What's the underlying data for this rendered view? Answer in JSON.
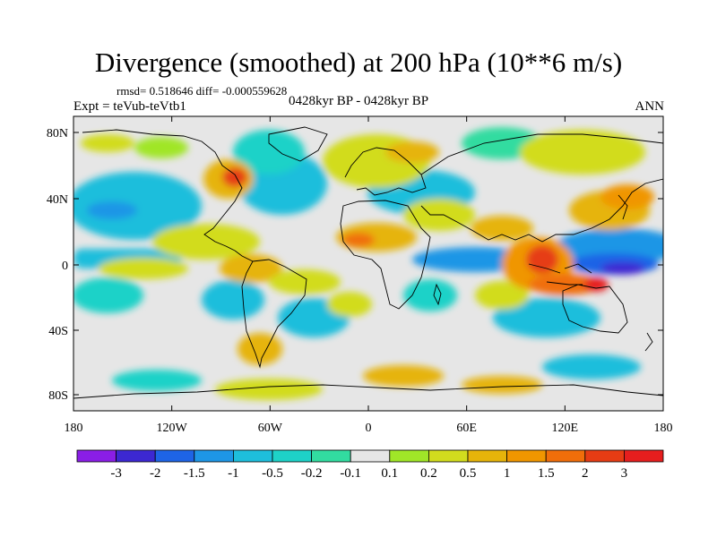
{
  "title": "Divergence (smoothed) at 200 hPa (10**6 m/s)",
  "stats": "rmsd= 0.518646 diff= -0.000559628",
  "experiment": "Expt = teVub-teVtb1",
  "period": "0428kyr BP - 0428kyr BP",
  "season": "ANN",
  "lat_ticks": [
    "80N",
    "40N",
    "0",
    "40S",
    "80S"
  ],
  "lon_ticks": [
    "180",
    "120W",
    "60W",
    "0",
    "60E",
    "120E",
    "180"
  ],
  "colorbar": {
    "labels": [
      "-3",
      "-2",
      "-1.5",
      "-1",
      "-0.5",
      "-0.2",
      "-0.1",
      "0.1",
      "0.2",
      "0.5",
      "1",
      "1.5",
      "2",
      "3"
    ],
    "colors": [
      "#8a1ee6",
      "#3c28d2",
      "#1e64e6",
      "#1e96e6",
      "#1ebedc",
      "#1ed2c8",
      "#32dca0",
      "#e6e6e6",
      "#a0e628",
      "#d2dc1e",
      "#e6b40a",
      "#f09600",
      "#f06e0a",
      "#e63c14",
      "#e61e1e"
    ]
  },
  "map_colors": {
    "background": "#e6e6e6",
    "coast": "#000000"
  }
}
